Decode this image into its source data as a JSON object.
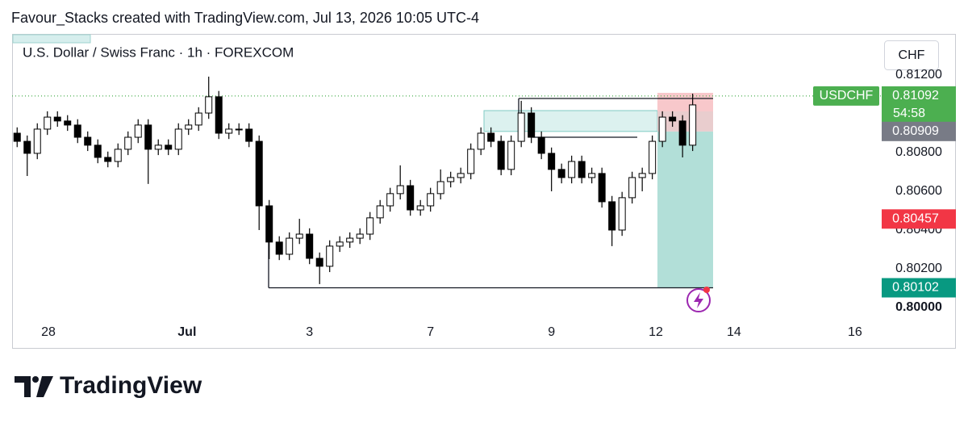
{
  "header": {
    "attribution": "Favour_Stacks created with TradingView.com, Jul 13, 2026 10:05 UTC-4"
  },
  "chart_data": {
    "type": "candlestick",
    "title": "U.S. Dollar / Swiss Franc · 1h · FOREXCOM",
    "currency": "CHF",
    "x": [
      2,
      6,
      10,
      14,
      18,
      22,
      26,
      30,
      34,
      38,
      42,
      46,
      50,
      54,
      58,
      62,
      66,
      70,
      74,
      78,
      82,
      86,
      90,
      94,
      98,
      102,
      106,
      110,
      114,
      118,
      122,
      126,
      130,
      134,
      138,
      142,
      146,
      150,
      154,
      158,
      162,
      166,
      170,
      174,
      178,
      182,
      186,
      190,
      194,
      198,
      202,
      206,
      210,
      214,
      218,
      222,
      226,
      230,
      234,
      238,
      242,
      246,
      250,
      254,
      258,
      262,
      266,
      270
    ],
    "open": [
      0.809,
      0.80858,
      0.80796,
      0.80921,
      0.80983,
      0.80963,
      0.80942,
      0.80879,
      0.80838,
      0.80775,
      0.80754,
      0.80817,
      0.80879,
      0.80942,
      0.80817,
      0.80838,
      0.80817,
      0.80921,
      0.80942,
      0.81004,
      0.81088,
      0.809,
      0.80921,
      0.80921,
      0.80858,
      0.80525,
      0.80338,
      0.80275,
      0.80358,
      0.80379,
      0.80254,
      0.80213,
      0.80317,
      0.80338,
      0.80358,
      0.80379,
      0.80463,
      0.80525,
      0.80588,
      0.80629,
      0.80504,
      0.80525,
      0.80588,
      0.8065,
      0.80671,
      0.80692,
      0.80817,
      0.809,
      0.80858,
      0.80713,
      0.80858,
      0.81004,
      0.80879,
      0.80796,
      0.80713,
      0.80671,
      0.80754,
      0.80671,
      0.80692,
      0.80546,
      0.804,
      0.80567,
      0.80671,
      0.80692,
      0.80858,
      0.80983,
      0.80963,
      0.80838
    ],
    "high": [
      0.8093,
      0.80888,
      0.80951,
      0.81013,
      0.81013,
      0.80993,
      0.80972,
      0.80909,
      0.80868,
      0.80805,
      0.80847,
      0.80909,
      0.80972,
      0.80972,
      0.80868,
      0.80868,
      0.80951,
      0.80972,
      0.81034,
      0.81192,
      0.81118,
      0.80951,
      0.80951,
      0.80951,
      0.80888,
      0.80555,
      0.80368,
      0.80388,
      0.80458,
      0.80409,
      0.80284,
      0.80347,
      0.80368,
      0.80388,
      0.80409,
      0.80493,
      0.80555,
      0.80618,
      0.80734,
      0.80659,
      0.80555,
      0.80618,
      0.80713,
      0.80701,
      0.80722,
      0.80847,
      0.8093,
      0.8093,
      0.80888,
      0.80888,
      0.81067,
      0.81034,
      0.80909,
      0.80826,
      0.80743,
      0.80784,
      0.80784,
      0.80722,
      0.80722,
      0.80576,
      0.80597,
      0.80701,
      0.80722,
      0.80888,
      0.81013,
      0.81013,
      0.80993,
      0.81104
    ],
    "low": [
      0.80828,
      0.80679,
      0.80766,
      0.80891,
      0.80933,
      0.80912,
      0.80849,
      0.80808,
      0.80745,
      0.80724,
      0.80724,
      0.80787,
      0.80849,
      0.80638,
      0.80787,
      0.80787,
      0.80787,
      0.80891,
      0.80912,
      0.80974,
      0.8087,
      0.8087,
      0.80891,
      0.80828,
      0.804,
      0.8025,
      0.80245,
      0.80245,
      0.80328,
      0.80224,
      0.80121,
      0.80183,
      0.80287,
      0.80308,
      0.80328,
      0.80349,
      0.80433,
      0.80495,
      0.80558,
      0.80474,
      0.80474,
      0.80495,
      0.80558,
      0.8062,
      0.80641,
      0.80662,
      0.80787,
      0.80828,
      0.80683,
      0.80683,
      0.80828,
      0.80849,
      0.80766,
      0.806,
      0.80641,
      0.80641,
      0.80641,
      0.80641,
      0.80516,
      0.80317,
      0.8037,
      0.80537,
      0.806,
      0.80662,
      0.80828,
      0.80933,
      0.80775,
      0.80808
    ],
    "close": [
      0.80858,
      0.80796,
      0.80921,
      0.80983,
      0.80963,
      0.80942,
      0.80879,
      0.80838,
      0.80775,
      0.80754,
      0.80817,
      0.80879,
      0.80942,
      0.80817,
      0.80838,
      0.80817,
      0.80921,
      0.80942,
      0.81004,
      0.81088,
      0.809,
      0.80921,
      0.80921,
      0.80858,
      0.80525,
      0.80338,
      0.80275,
      0.80358,
      0.80379,
      0.80254,
      0.80213,
      0.80317,
      0.80338,
      0.80358,
      0.80379,
      0.80463,
      0.80525,
      0.80588,
      0.80629,
      0.80504,
      0.80525,
      0.80588,
      0.8065,
      0.80671,
      0.80692,
      0.80817,
      0.809,
      0.80858,
      0.80713,
      0.80858,
      0.81004,
      0.80879,
      0.80796,
      0.80713,
      0.80671,
      0.80754,
      0.80671,
      0.80692,
      0.80546,
      0.804,
      0.80567,
      0.80671,
      0.80692,
      0.80858,
      0.80983,
      0.80963,
      0.80838,
      0.81046
    ],
    "up_color": "#ffffff",
    "down_color": "#000000",
    "xlim": [
      0,
      345
    ],
    "xticks": [
      {
        "value": 14.4,
        "label": "28"
      },
      {
        "value": 69.4,
        "label": "Jul"
      },
      {
        "value": 118,
        "label": "3"
      },
      {
        "value": 166,
        "label": "7"
      },
      {
        "value": 214,
        "label": "9"
      },
      {
        "value": 255.4,
        "label": "12"
      },
      {
        "value": 286.4,
        "label": "14"
      },
      {
        "value": 334.4,
        "label": "16"
      }
    ],
    "ylim": [
      0.79929,
      0.814125
    ],
    "yticks": [
      {
        "value": 0.8,
        "label": "0.80000"
      },
      {
        "value": 0.802,
        "label": "0.80200"
      },
      {
        "value": 0.804,
        "label": "0.80400"
      },
      {
        "value": 0.806,
        "label": "0.80600"
      },
      {
        "value": 0.808,
        "label": "0.80800"
      },
      {
        "value": 0.812,
        "label": "0.81200"
      }
    ],
    "grid": false,
    "last_price": {
      "symbol": "USDCHF",
      "value": 0.81092,
      "countdown": "54:58",
      "color": "#4caf50"
    },
    "price_labels": [
      {
        "value": 0.80909,
        "color": "#787b86"
      },
      {
        "value": 0.80457,
        "color": "#f23645"
      },
      {
        "value": 0.80102,
        "color": "#089981"
      }
    ]
  },
  "footer": {
    "brand": "TradingView"
  }
}
